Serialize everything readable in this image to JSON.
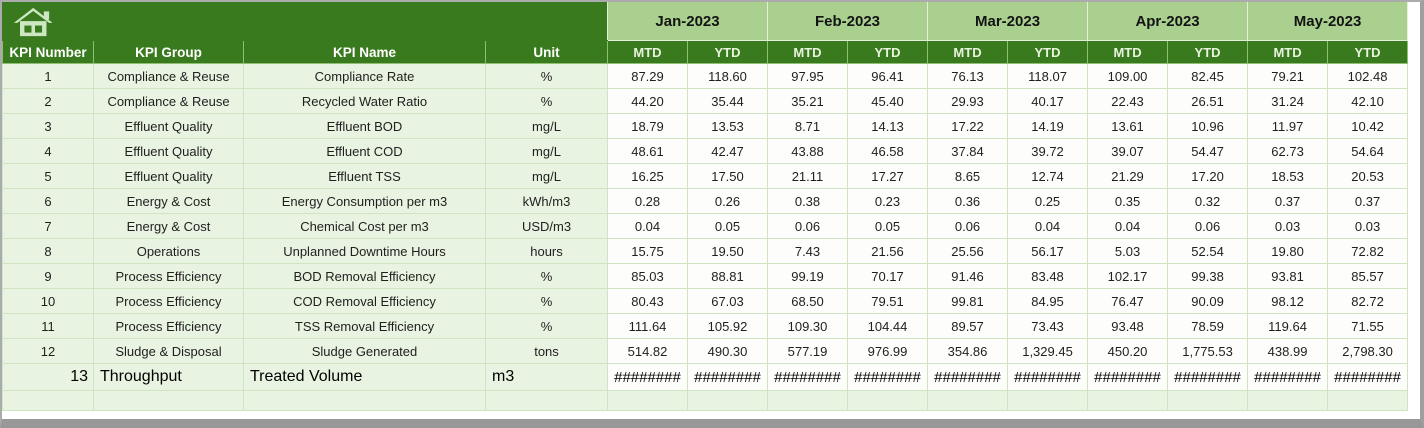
{
  "theme": {
    "dark-green": "#3a7a1e",
    "month-green": "#a9d08e",
    "row-green": "#e9f3e1",
    "white-cell": "#fdfefb",
    "grid": "#cfe5c1",
    "header-sep": "#8fbf70",
    "month-sep": "#e2f0d9",
    "mtd-text": "#e8f3de",
    "icon-light": "#cde7c3",
    "frame-gray": "#9f9f9f"
  },
  "header": {
    "left_columns": [
      "KPI Number",
      "KPI Group",
      "KPI Name",
      "Unit"
    ],
    "months": [
      "Jan-2023",
      "Feb-2023",
      "Mar-2023",
      "Apr-2023",
      "May-2023"
    ],
    "period_labels": [
      "MTD",
      "YTD"
    ]
  },
  "rows": [
    {
      "num": "1",
      "group": "Compliance & Reuse",
      "name": "Compliance Rate",
      "unit": "%",
      "values": [
        "87.29",
        "118.60",
        "97.95",
        "96.41",
        "76.13",
        "118.07",
        "109.00",
        "82.45",
        "79.21",
        "102.48"
      ]
    },
    {
      "num": "2",
      "group": "Compliance & Reuse",
      "name": "Recycled Water Ratio",
      "unit": "%",
      "values": [
        "44.20",
        "35.44",
        "35.21",
        "45.40",
        "29.93",
        "40.17",
        "22.43",
        "26.51",
        "31.24",
        "42.10"
      ]
    },
    {
      "num": "3",
      "group": "Effluent Quality",
      "name": "Effluent BOD",
      "unit": "mg/L",
      "values": [
        "18.79",
        "13.53",
        "8.71",
        "14.13",
        "17.22",
        "14.19",
        "13.61",
        "10.96",
        "11.97",
        "10.42"
      ]
    },
    {
      "num": "4",
      "group": "Effluent Quality",
      "name": "Effluent COD",
      "unit": "mg/L",
      "values": [
        "48.61",
        "42.47",
        "43.88",
        "46.58",
        "37.84",
        "39.72",
        "39.07",
        "54.47",
        "62.73",
        "54.64"
      ]
    },
    {
      "num": "5",
      "group": "Effluent Quality",
      "name": "Effluent TSS",
      "unit": "mg/L",
      "values": [
        "16.25",
        "17.50",
        "21.11",
        "17.27",
        "8.65",
        "12.74",
        "21.29",
        "17.20",
        "18.53",
        "20.53"
      ]
    },
    {
      "num": "6",
      "group": "Energy & Cost",
      "name": "Energy Consumption per m3",
      "unit": "kWh/m3",
      "values": [
        "0.28",
        "0.26",
        "0.38",
        "0.23",
        "0.36",
        "0.25",
        "0.35",
        "0.32",
        "0.37",
        "0.37"
      ]
    },
    {
      "num": "7",
      "group": "Energy & Cost",
      "name": "Chemical Cost per m3",
      "unit": "USD/m3",
      "values": [
        "0.04",
        "0.05",
        "0.06",
        "0.05",
        "0.06",
        "0.04",
        "0.04",
        "0.06",
        "0.03",
        "0.03"
      ]
    },
    {
      "num": "8",
      "group": "Operations",
      "name": "Unplanned Downtime Hours",
      "unit": "hours",
      "values": [
        "15.75",
        "19.50",
        "7.43",
        "21.56",
        "25.56",
        "56.17",
        "5.03",
        "52.54",
        "19.80",
        "72.82"
      ]
    },
    {
      "num": "9",
      "group": "Process Efficiency",
      "name": "BOD Removal Efficiency",
      "unit": "%",
      "values": [
        "85.03",
        "88.81",
        "99.19",
        "70.17",
        "91.46",
        "83.48",
        "102.17",
        "99.38",
        "93.81",
        "85.57"
      ]
    },
    {
      "num": "10",
      "group": "Process Efficiency",
      "name": "COD Removal Efficiency",
      "unit": "%",
      "values": [
        "80.43",
        "67.03",
        "68.50",
        "79.51",
        "99.81",
        "84.95",
        "76.47",
        "90.09",
        "98.12",
        "82.72"
      ]
    },
    {
      "num": "11",
      "group": "Process Efficiency",
      "name": "TSS Removal Efficiency",
      "unit": "%",
      "values": [
        "111.64",
        "105.92",
        "109.30",
        "104.44",
        "89.57",
        "73.43",
        "93.48",
        "78.59",
        "119.64",
        "71.55"
      ]
    },
    {
      "num": "12",
      "group": "Sludge & Disposal",
      "name": "Sludge Generated",
      "unit": "tons",
      "values": [
        "514.82",
        "490.30",
        "577.19",
        "976.99",
        "354.86",
        "1,329.45",
        "450.20",
        "1,775.53",
        "438.99",
        "2,798.30"
      ]
    }
  ],
  "overflow_row": {
    "num": "13",
    "group": "Throughput",
    "name": "Treated Volume",
    "unit": "m3",
    "values": [
      "########",
      "########",
      "########",
      "########",
      "########",
      "########",
      "########",
      "########",
      "########",
      "########"
    ]
  },
  "empty_row": {
    "num": "",
    "group": "",
    "name": "",
    "unit": "",
    "values": [
      "",
      "",
      "",
      "",
      "",
      "",
      "",
      "",
      "",
      ""
    ]
  }
}
